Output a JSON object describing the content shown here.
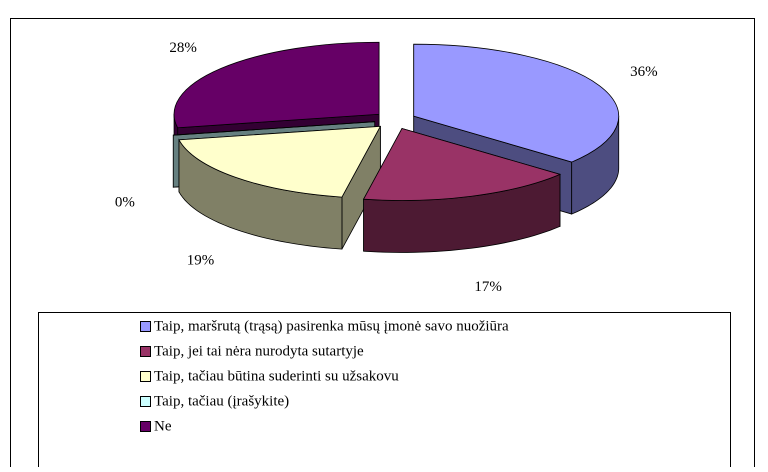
{
  "chart_data": {
    "type": "pie3d",
    "categories": [
      "Taip, maršrutą (trąsą) pasirenka mūsų įmonė savo nuožiūra",
      "Taip, jei tai nėra nurodyta sutartyje",
      "Taip, tačiau būtina suderinti su užsakovu",
      "Taip, tačiau (įrašykite)",
      "Ne"
    ],
    "values": [
      36,
      17,
      19,
      0,
      28
    ],
    "value_labels": [
      "36%",
      "17%",
      "19%",
      "0%",
      "28%"
    ],
    "colors": [
      "#9999ff",
      "#993366",
      "#ffffcc",
      "#ccffff",
      "#660066"
    ]
  }
}
